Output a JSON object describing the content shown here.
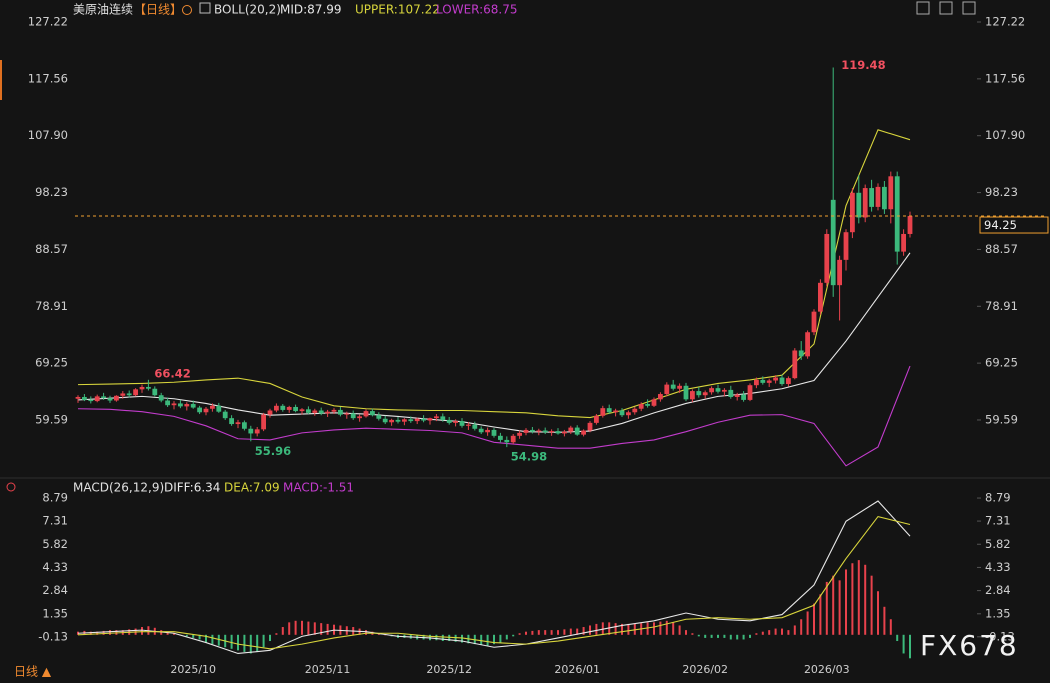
{
  "chart_data": [
    {
      "type": "candlestick",
      "title": "美原油连续",
      "period": "【日线】",
      "indicator": "BOLL(20,2)",
      "watermark": "FX678",
      "period_selector": "日线 ▲",
      "up_color": "#e8424c",
      "down_color": "#3cb97c",
      "ylim": [
        50.24,
        129.6
      ],
      "yticks": [
        127.22,
        117.56,
        {
          "value": 107.9,
          "label": "107.90"
        },
        98.23,
        88.57,
        78.91,
        69.25,
        59.59
      ],
      "categories": [
        null,
        null,
        null,
        null,
        null,
        null,
        null,
        null,
        null,
        null,
        null,
        null,
        null,
        null,
        null,
        null,
        null,
        null,
        "2025/10",
        null,
        null,
        null,
        null,
        null,
        null,
        null,
        null,
        null,
        null,
        null,
        null,
        null,
        null,
        null,
        null,
        null,
        null,
        null,
        null,
        "2025/11",
        null,
        null,
        null,
        null,
        null,
        null,
        null,
        null,
        null,
        null,
        null,
        null,
        null,
        null,
        null,
        null,
        null,
        null,
        "2025/12",
        null,
        null,
        null,
        null,
        null,
        null,
        null,
        null,
        null,
        null,
        null,
        null,
        null,
        null,
        null,
        null,
        null,
        null,
        null,
        "2026/01",
        null,
        null,
        null,
        null,
        null,
        null,
        null,
        null,
        null,
        null,
        null,
        null,
        null,
        null,
        null,
        null,
        null,
        null,
        null,
        "2026/02",
        null,
        null,
        null,
        null,
        null,
        null,
        null,
        null,
        null,
        null,
        null,
        null,
        null,
        null,
        null,
        null,
        null,
        null,
        "2026/03",
        null,
        null,
        null,
        null,
        null,
        null,
        null,
        null,
        null,
        null,
        null,
        null,
        null
      ],
      "candles": [
        [
          63.2,
          63.8,
          62.5,
          63.5
        ],
        [
          63.5,
          64.0,
          62.8,
          63.0
        ],
        [
          63.0,
          63.6,
          62.4,
          62.8
        ],
        [
          62.8,
          63.9,
          62.6,
          63.6
        ],
        [
          63.6,
          64.2,
          63.0,
          63.3
        ],
        [
          63.3,
          63.7,
          62.5,
          62.9
        ],
        [
          62.9,
          63.8,
          62.7,
          63.7
        ],
        [
          63.7,
          64.5,
          63.2,
          64.1
        ],
        [
          64.1,
          64.6,
          63.4,
          63.8
        ],
        [
          63.8,
          65.0,
          63.6,
          64.8
        ],
        [
          64.8,
          65.6,
          64.2,
          65.2
        ],
        [
          65.2,
          66.42,
          64.6,
          64.9
        ],
        [
          64.9,
          65.3,
          63.6,
          63.8
        ],
        [
          63.8,
          64.2,
          62.6,
          62.9
        ],
        [
          62.9,
          63.4,
          61.8,
          62.1
        ],
        [
          62.1,
          62.8,
          61.4,
          62.4
        ],
        [
          62.4,
          63.0,
          61.6,
          61.9
        ],
        [
          61.9,
          62.6,
          61.2,
          62.3
        ],
        [
          62.3,
          62.9,
          61.5,
          61.7
        ],
        [
          61.7,
          62.0,
          60.6,
          60.9
        ],
        [
          60.9,
          61.8,
          60.4,
          61.5
        ],
        [
          61.5,
          62.4,
          61.0,
          62.0
        ],
        [
          62.0,
          62.5,
          60.8,
          61.0
        ],
        [
          61.0,
          61.3,
          59.6,
          59.9
        ],
        [
          59.9,
          60.4,
          58.6,
          58.9
        ],
        [
          58.9,
          59.6,
          58.2,
          59.2
        ],
        [
          59.2,
          59.5,
          57.8,
          58.1
        ],
        [
          58.1,
          58.6,
          55.96,
          57.3
        ],
        [
          57.3,
          58.4,
          56.8,
          58.0
        ],
        [
          58.0,
          60.8,
          57.7,
          60.5
        ],
        [
          60.5,
          61.5,
          60.0,
          61.2
        ],
        [
          61.2,
          62.4,
          60.9,
          62.0
        ],
        [
          62.0,
          62.3,
          61.0,
          61.3
        ],
        [
          61.3,
          62.0,
          60.8,
          61.8
        ],
        [
          61.8,
          62.2,
          60.9,
          61.1
        ],
        [
          61.1,
          61.6,
          60.5,
          61.4
        ],
        [
          61.4,
          61.9,
          60.6,
          60.8
        ],
        [
          60.8,
          61.5,
          60.3,
          61.2
        ],
        [
          61.2,
          61.7,
          60.4,
          60.7
        ],
        [
          60.7,
          61.3,
          60.1,
          61.0
        ],
        [
          61.0,
          61.6,
          60.6,
          61.3
        ],
        [
          61.3,
          61.8,
          60.2,
          60.5
        ],
        [
          60.5,
          61.0,
          59.8,
          60.7
        ],
        [
          60.7,
          61.2,
          59.6,
          59.9
        ],
        [
          59.9,
          60.5,
          59.3,
          60.2
        ],
        [
          60.2,
          61.4,
          60.0,
          61.1
        ],
        [
          61.1,
          61.5,
          60.2,
          60.4
        ],
        [
          60.4,
          60.9,
          59.5,
          59.8
        ],
        [
          59.8,
          60.3,
          58.9,
          59.2
        ],
        [
          59.2,
          59.8,
          58.6,
          59.6
        ],
        [
          59.6,
          60.1,
          59.0,
          59.3
        ],
        [
          59.3,
          59.9,
          58.7,
          59.7
        ],
        [
          59.7,
          60.2,
          59.1,
          59.4
        ],
        [
          59.4,
          60.0,
          58.9,
          59.8
        ],
        [
          59.8,
          60.4,
          59.2,
          59.5
        ],
        [
          59.5,
          60.0,
          58.8,
          59.9
        ],
        [
          59.9,
          60.6,
          59.4,
          60.2
        ],
        [
          60.2,
          60.7,
          59.3,
          59.6
        ],
        [
          59.6,
          60.1,
          58.8,
          59.1
        ],
        [
          59.1,
          59.7,
          58.5,
          59.4
        ],
        [
          59.4,
          59.9,
          58.3,
          58.6
        ],
        [
          58.6,
          59.2,
          57.9,
          58.8
        ],
        [
          58.8,
          59.3,
          57.8,
          58.1
        ],
        [
          58.1,
          58.5,
          57.2,
          57.5
        ],
        [
          57.5,
          58.3,
          56.9,
          57.9
        ],
        [
          57.9,
          58.2,
          56.6,
          56.9
        ],
        [
          56.9,
          57.4,
          55.8,
          56.2
        ],
        [
          56.2,
          56.8,
          54.98,
          55.8
        ],
        [
          55.8,
          57.2,
          55.5,
          56.9
        ],
        [
          56.9,
          57.8,
          56.4,
          57.4
        ],
        [
          57.4,
          58.2,
          57.0,
          57.9
        ],
        [
          57.9,
          58.4,
          57.3,
          57.6
        ],
        [
          57.6,
          58.1,
          57.0,
          57.8
        ],
        [
          57.8,
          58.3,
          57.2,
          57.5
        ],
        [
          57.5,
          58.0,
          56.9,
          57.7
        ],
        [
          57.7,
          58.2,
          57.1,
          57.3
        ],
        [
          57.3,
          57.9,
          56.8,
          57.6
        ],
        [
          57.6,
          58.6,
          57.2,
          58.3
        ],
        [
          58.3,
          58.7,
          56.9,
          57.1
        ],
        [
          57.1,
          58.0,
          56.8,
          57.8
        ],
        [
          57.8,
          59.4,
          57.5,
          59.1
        ],
        [
          59.1,
          60.6,
          58.8,
          60.3
        ],
        [
          60.3,
          62.0,
          60.0,
          61.6
        ],
        [
          61.6,
          62.2,
          60.6,
          60.9
        ],
        [
          60.9,
          61.5,
          60.2,
          61.2
        ],
        [
          61.2,
          61.6,
          60.1,
          60.4
        ],
        [
          60.4,
          61.2,
          59.8,
          60.9
        ],
        [
          60.9,
          61.8,
          60.5,
          61.5
        ],
        [
          61.5,
          62.6,
          61.1,
          62.3
        ],
        [
          62.3,
          63.1,
          61.7,
          62.0
        ],
        [
          62.0,
          63.4,
          61.8,
          63.1
        ],
        [
          63.1,
          64.3,
          62.7,
          64.0
        ],
        [
          64.0,
          66.0,
          63.6,
          65.6
        ],
        [
          65.6,
          66.4,
          64.6,
          64.9
        ],
        [
          64.9,
          65.8,
          64.2,
          65.4
        ],
        [
          65.4,
          65.9,
          62.8,
          63.1
        ],
        [
          63.1,
          64.8,
          62.6,
          64.5
        ],
        [
          64.5,
          65.2,
          63.4,
          63.8
        ],
        [
          63.8,
          64.6,
          63.2,
          64.3
        ],
        [
          64.3,
          65.3,
          63.9,
          65.0
        ],
        [
          65.0,
          65.6,
          64.1,
          64.4
        ],
        [
          64.4,
          65.0,
          63.6,
          64.7
        ],
        [
          64.7,
          65.4,
          63.2,
          63.5
        ],
        [
          63.5,
          64.2,
          62.9,
          63.9
        ],
        [
          63.9,
          64.5,
          62.7,
          63.0
        ],
        [
          63.0,
          65.8,
          62.8,
          65.5
        ],
        [
          65.5,
          66.8,
          65.0,
          66.4
        ],
        [
          66.4,
          67.0,
          65.6,
          65.9
        ],
        [
          65.9,
          66.6,
          65.2,
          66.3
        ],
        [
          66.3,
          67.2,
          65.8,
          66.8
        ],
        [
          66.8,
          67.3,
          65.4,
          65.7
        ],
        [
          65.7,
          67.0,
          65.3,
          66.7
        ],
        [
          66.7,
          71.8,
          66.5,
          71.4
        ],
        [
          71.4,
          73.0,
          69.8,
          70.4
        ],
        [
          70.4,
          74.8,
          70.0,
          74.5
        ],
        [
          74.5,
          78.4,
          74.0,
          78.0
        ],
        [
          78.0,
          83.5,
          77.5,
          82.9
        ],
        [
          82.9,
          92.0,
          82.3,
          91.2
        ],
        [
          97.0,
          119.48,
          80.5,
          82.5
        ],
        [
          82.5,
          87.5,
          76.5,
          86.8
        ],
        [
          86.8,
          92.0,
          85.0,
          91.5
        ],
        [
          91.5,
          99.0,
          90.5,
          98.2
        ],
        [
          98.2,
          101.2,
          93.0,
          94.0
        ],
        [
          94.0,
          99.6,
          93.2,
          99.0
        ],
        [
          99.0,
          100.4,
          95.0,
          95.8
        ],
        [
          95.8,
          99.8,
          95.2,
          99.2
        ],
        [
          99.2,
          100.2,
          94.6,
          95.4
        ],
        [
          95.4,
          101.8,
          93.0,
          101.0
        ],
        [
          101.0,
          101.8,
          86.0,
          88.2
        ],
        [
          88.2,
          92.0,
          87.5,
          91.2
        ],
        [
          91.2,
          95.0,
          90.6,
          94.25
        ]
      ],
      "x": [
        0,
        5,
        10,
        15,
        20,
        25,
        30,
        35,
        40,
        45,
        50,
        55,
        60,
        65,
        70,
        75,
        80,
        85,
        90,
        95,
        100,
        105,
        110,
        115,
        120,
        125,
        130
      ],
      "series": [
        {
          "name": "MID:87.99",
          "color": "#e8e8e8",
          "values": [
            63.0,
            63.3,
            63.6,
            63.2,
            62.4,
            61.3,
            60.4,
            60.6,
            60.8,
            60.6,
            60.2,
            59.7,
            59.3,
            58.4,
            57.6,
            57.5,
            57.7,
            59.0,
            60.8,
            62.4,
            63.6,
            64.1,
            64.9,
            66.3,
            73.0,
            80.5,
            87.99
          ]
        },
        {
          "name": "UPPER:107.22",
          "color": "#d8d53c",
          "values": [
            65.6,
            65.7,
            65.8,
            66.0,
            66.4,
            66.7,
            65.8,
            63.5,
            62.0,
            61.5,
            61.3,
            61.2,
            61.2,
            61.0,
            60.8,
            60.3,
            60.0,
            61.2,
            63.0,
            64.8,
            65.8,
            66.4,
            67.2,
            72.5,
            96.0,
            108.9,
            107.22
          ]
        },
        {
          "name": "LOWER:68.75",
          "color": "#c23ccc",
          "values": [
            61.5,
            61.4,
            61.0,
            60.2,
            58.6,
            56.4,
            56.2,
            57.4,
            57.9,
            58.2,
            58.0,
            57.8,
            57.4,
            55.8,
            55.3,
            54.8,
            54.8,
            55.6,
            56.2,
            57.6,
            59.2,
            60.4,
            60.5,
            59.0,
            51.8,
            55.0,
            68.75
          ]
        }
      ],
      "last_price_color": "#f0a030"
    },
    {
      "type": "macd",
      "title": "MACD(26,12,9)",
      "ylim": [
        -1.62,
        9.95
      ],
      "yticks": [
        8.79,
        7.31,
        5.82,
        4.33,
        2.84,
        1.35,
        -0.13
      ],
      "x": [
        0,
        5,
        10,
        15,
        20,
        25,
        30,
        35,
        40,
        45,
        50,
        55,
        60,
        65,
        70,
        75,
        80,
        85,
        90,
        95,
        100,
        105,
        110,
        115,
        120,
        125,
        130
      ],
      "series": [
        {
          "name": "DIFF:6.34",
          "color": "#e8e8e8",
          "values": [
            0.1,
            0.2,
            0.3,
            0.1,
            -0.5,
            -1.2,
            -1.0,
            -0.1,
            0.3,
            0.2,
            -0.1,
            -0.2,
            -0.4,
            -0.8,
            -0.6,
            -0.2,
            0.2,
            0.6,
            0.9,
            1.4,
            1.0,
            0.9,
            1.3,
            3.2,
            7.3,
            8.6,
            6.34
          ]
        },
        {
          "name": "DEA:7.09",
          "color": "#d8d53c",
          "values": [
            0.0,
            0.1,
            0.2,
            0.2,
            -0.1,
            -0.6,
            -0.9,
            -0.6,
            -0.2,
            0.1,
            0.1,
            -0.1,
            -0.2,
            -0.5,
            -0.6,
            -0.4,
            -0.1,
            0.2,
            0.5,
            1.0,
            1.1,
            1.0,
            1.1,
            1.9,
            4.9,
            7.6,
            7.09
          ]
        }
      ],
      "histogram": {
        "name": "MACD:-1.51",
        "color": "#c23ccc",
        "up_color": "#e8424c",
        "down_color": "#3cb97c",
        "values": [
          0.2,
          0.25,
          0.2,
          0.2,
          0.25,
          0.3,
          0.3,
          0.3,
          0.35,
          0.4,
          0.5,
          0.55,
          0.45,
          0.3,
          0.2,
          0.1,
          0.0,
          -0.1,
          -0.2,
          -0.3,
          -0.5,
          -0.6,
          -0.7,
          -0.8,
          -0.9,
          -1.0,
          -1.1,
          -1.2,
          -1.1,
          -0.8,
          -0.4,
          0.1,
          0.5,
          0.8,
          0.9,
          0.9,
          0.85,
          0.8,
          0.75,
          0.7,
          0.65,
          0.6,
          0.55,
          0.5,
          0.4,
          0.3,
          0.2,
          0.1,
          0.0,
          -0.1,
          -0.2,
          -0.2,
          -0.25,
          -0.3,
          -0.3,
          -0.35,
          -0.35,
          -0.4,
          -0.4,
          -0.45,
          -0.5,
          -0.55,
          -0.6,
          -0.65,
          -0.7,
          -0.6,
          -0.5,
          -0.3,
          -0.1,
          0.1,
          0.2,
          0.25,
          0.3,
          0.3,
          0.3,
          0.3,
          0.35,
          0.4,
          0.4,
          0.5,
          0.6,
          0.7,
          0.8,
          0.8,
          0.75,
          0.7,
          0.7,
          0.7,
          0.75,
          0.8,
          0.8,
          0.85,
          0.9,
          0.8,
          0.6,
          0.3,
          0.1,
          -0.1,
          -0.2,
          -0.2,
          -0.2,
          -0.2,
          -0.3,
          -0.3,
          -0.3,
          -0.2,
          0.1,
          0.2,
          0.3,
          0.4,
          0.4,
          0.3,
          0.6,
          1.0,
          1.5,
          2.0,
          2.6,
          3.4,
          3.8,
          3.5,
          4.2,
          4.6,
          4.8,
          4.5,
          3.8,
          2.8,
          1.8,
          1.0,
          -0.4,
          -1.2,
          -1.51
        ]
      }
    }
  ]
}
